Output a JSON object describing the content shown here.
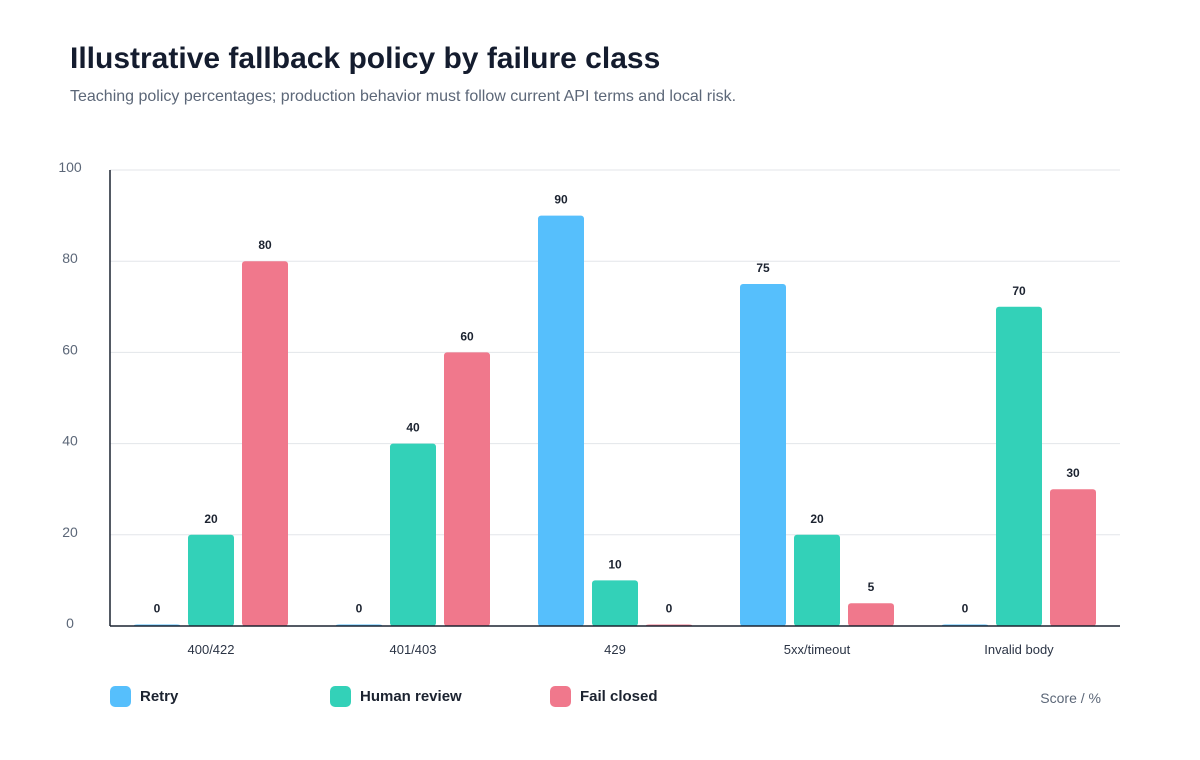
{
  "chart_data": {
    "type": "bar",
    "title": "Illustrative fallback policy by failure class",
    "subtitle": "Teaching policy percentages; production behavior must follow current API terms and local risk.",
    "categories": [
      "400/422",
      "401/403",
      "429",
      "5xx/timeout",
      "Invalid body"
    ],
    "series": [
      {
        "name": "Retry",
        "color": "#56bffc",
        "values": [
          0,
          0,
          90,
          75,
          0
        ]
      },
      {
        "name": "Human review",
        "color": "#33d1b8",
        "values": [
          20,
          40,
          10,
          20,
          70
        ]
      },
      {
        "name": "Fail closed",
        "color": "#f0788c",
        "values": [
          80,
          60,
          0,
          5,
          30
        ]
      }
    ],
    "ylim": [
      0,
      100
    ],
    "yticks": [
      0,
      20,
      40,
      60,
      80,
      100
    ],
    "grid": true,
    "legend_position": "bottom",
    "unit_note": "Score / %"
  }
}
